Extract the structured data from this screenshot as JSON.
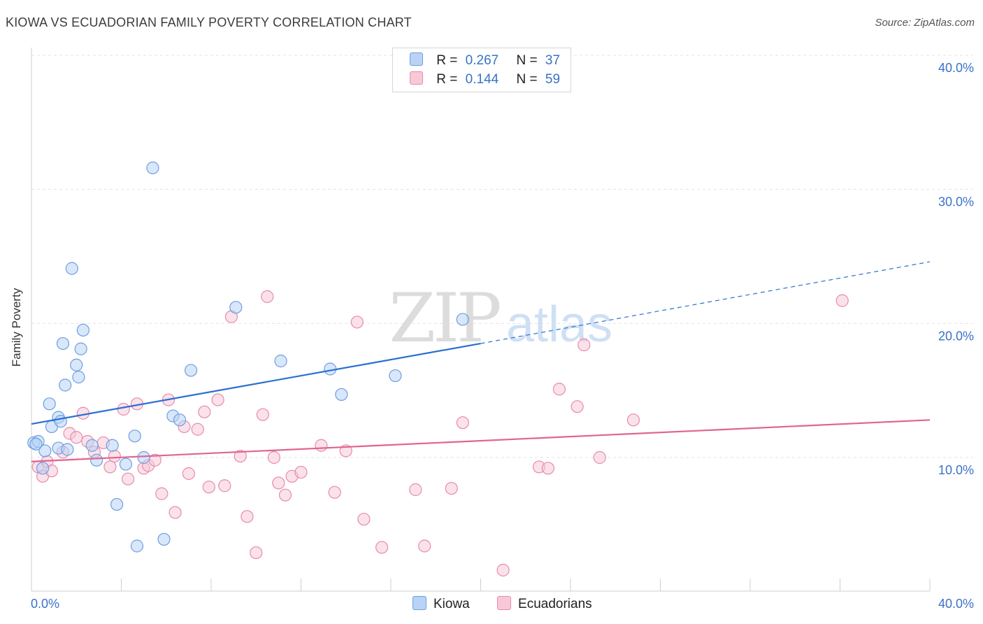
{
  "title": "KIOWA VS ECUADORIAN FAMILY POVERTY CORRELATION CHART",
  "source": "Source: ZipAtlas.com",
  "watermark": {
    "zip": "ZIP",
    "atlas": "atlas"
  },
  "legend": {
    "rows": [
      {
        "r_label": "R =",
        "r_value": "0.267",
        "n_label": "N =",
        "n_value": "37"
      },
      {
        "r_label": "R =",
        "r_value": "0.144",
        "n_label": "N =",
        "n_value": "59"
      }
    ]
  },
  "bottom_legend": {
    "kiowa": "Kiowa",
    "ecuadorians": "Ecuadorians"
  },
  "colors": {
    "kiowa_fill": "#b8d3f5",
    "kiowa_stroke": "#6d9ee0",
    "kiowa_line": "#2a6fd0",
    "ecuador_fill": "#f8c8d8",
    "ecuador_stroke": "#e58cab",
    "ecuador_line": "#e06490",
    "tick_label": "#3a72c8",
    "grid": "#e3e3e3"
  },
  "chart_data": {
    "type": "scatter",
    "title": "KIOWA VS ECUADORIAN FAMILY POVERTY CORRELATION CHART",
    "xlabel": "",
    "ylabel": "Family Poverty",
    "xlim": [
      0,
      40
    ],
    "ylim": [
      0,
      40
    ],
    "x_tick_labels": [
      "0.0%",
      "40.0%"
    ],
    "y_ticks": [
      10,
      20,
      30,
      40
    ],
    "y_tick_labels": [
      "10.0%",
      "20.0%",
      "30.0%",
      "40.0%"
    ],
    "grid": true,
    "series": [
      {
        "name": "Kiowa",
        "points": [
          [
            0.1,
            11.1
          ],
          [
            0.3,
            11.2
          ],
          [
            0.5,
            9.2
          ],
          [
            0.6,
            10.5
          ],
          [
            0.8,
            14.0
          ],
          [
            0.9,
            12.3
          ],
          [
            1.2,
            10.7
          ],
          [
            1.2,
            13.0
          ],
          [
            1.3,
            12.7
          ],
          [
            1.4,
            18.5
          ],
          [
            1.5,
            15.4
          ],
          [
            1.6,
            10.6
          ],
          [
            1.8,
            24.1
          ],
          [
            2.0,
            16.9
          ],
          [
            2.1,
            16.0
          ],
          [
            2.2,
            18.1
          ],
          [
            2.3,
            19.5
          ],
          [
            2.7,
            10.9
          ],
          [
            2.9,
            9.8
          ],
          [
            3.6,
            10.9
          ],
          [
            3.8,
            6.5
          ],
          [
            4.2,
            9.5
          ],
          [
            4.6,
            11.6
          ],
          [
            4.7,
            3.4
          ],
          [
            5.0,
            10.0
          ],
          [
            5.4,
            31.6
          ],
          [
            5.9,
            3.9
          ],
          [
            6.3,
            13.1
          ],
          [
            6.6,
            12.8
          ],
          [
            7.1,
            16.5
          ],
          [
            9.1,
            21.2
          ],
          [
            11.1,
            17.2
          ],
          [
            13.3,
            16.6
          ],
          [
            13.8,
            14.7
          ],
          [
            16.2,
            16.1
          ],
          [
            19.2,
            20.3
          ],
          [
            0.2,
            11.0
          ]
        ],
        "trend": {
          "x0": 0,
          "y0": 12.5,
          "x1": 20,
          "y1": 18.5,
          "dashed_to_x": 40,
          "dashed_to_y": 24.6
        }
      },
      {
        "name": "Ecuadorians",
        "points": [
          [
            0.3,
            9.3
          ],
          [
            0.5,
            8.6
          ],
          [
            0.7,
            9.7
          ],
          [
            0.9,
            9.0
          ],
          [
            1.4,
            10.4
          ],
          [
            1.7,
            11.8
          ],
          [
            2.0,
            11.5
          ],
          [
            2.3,
            13.3
          ],
          [
            2.5,
            11.2
          ],
          [
            2.8,
            10.4
          ],
          [
            3.2,
            11.1
          ],
          [
            3.5,
            9.3
          ],
          [
            3.7,
            10.1
          ],
          [
            4.1,
            13.6
          ],
          [
            4.3,
            8.4
          ],
          [
            4.7,
            14.0
          ],
          [
            5.0,
            9.2
          ],
          [
            5.2,
            9.4
          ],
          [
            5.5,
            9.8
          ],
          [
            5.8,
            7.3
          ],
          [
            6.1,
            14.3
          ],
          [
            6.4,
            5.9
          ],
          [
            6.8,
            12.3
          ],
          [
            7.0,
            8.8
          ],
          [
            7.4,
            12.1
          ],
          [
            7.7,
            13.4
          ],
          [
            7.9,
            7.8
          ],
          [
            8.3,
            14.3
          ],
          [
            8.6,
            7.9
          ],
          [
            8.9,
            20.5
          ],
          [
            9.3,
            10.1
          ],
          [
            9.6,
            5.6
          ],
          [
            10.0,
            2.9
          ],
          [
            10.3,
            13.2
          ],
          [
            10.5,
            22.0
          ],
          [
            10.8,
            10.0
          ],
          [
            11.0,
            8.1
          ],
          [
            11.3,
            7.2
          ],
          [
            11.6,
            8.6
          ],
          [
            12.0,
            8.9
          ],
          [
            12.9,
            10.9
          ],
          [
            13.5,
            7.4
          ],
          [
            14.0,
            10.5
          ],
          [
            14.5,
            20.1
          ],
          [
            14.8,
            5.4
          ],
          [
            15.6,
            3.3
          ],
          [
            17.1,
            7.6
          ],
          [
            17.5,
            3.4
          ],
          [
            18.7,
            7.7
          ],
          [
            19.2,
            12.6
          ],
          [
            21.0,
            1.6
          ],
          [
            22.6,
            9.3
          ],
          [
            23.0,
            9.2
          ],
          [
            23.5,
            15.1
          ],
          [
            24.3,
            13.8
          ],
          [
            24.6,
            18.4
          ],
          [
            25.3,
            10.0
          ],
          [
            26.8,
            12.8
          ],
          [
            36.1,
            21.7
          ]
        ],
        "trend": {
          "x0": 0,
          "y0": 9.7,
          "x1": 40,
          "y1": 12.8
        }
      }
    ]
  }
}
